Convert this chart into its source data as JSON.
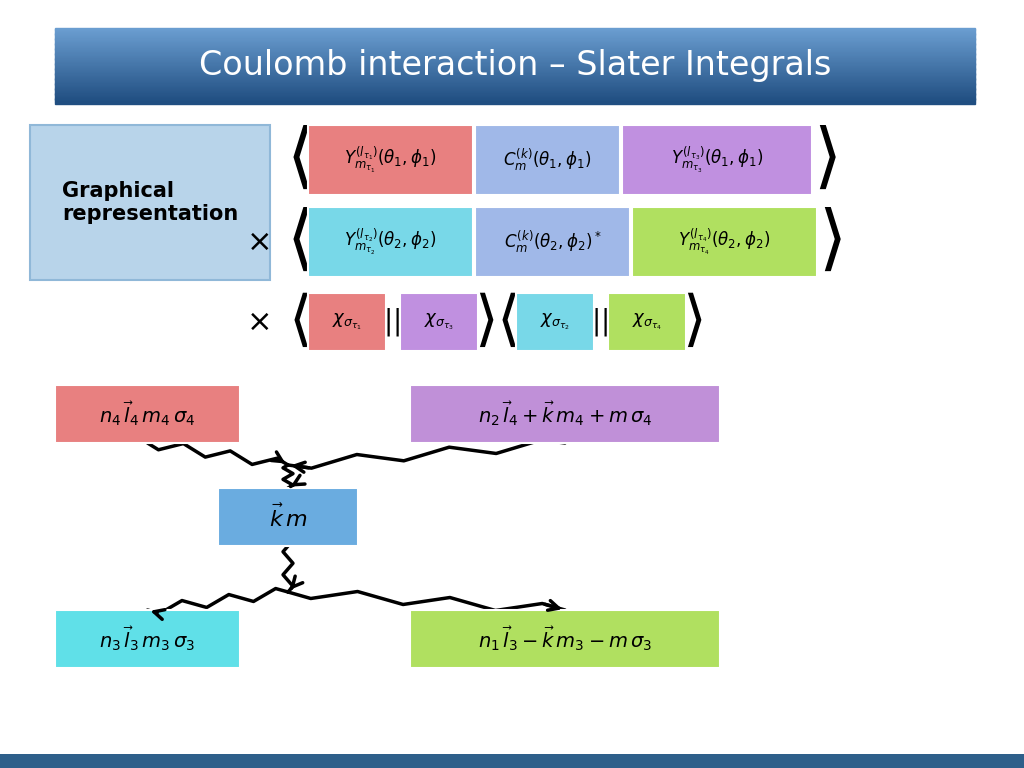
{
  "title": "Coulomb interaction – Slater Integrals",
  "background_color": "#ffffff",
  "graphical_label": "Graphical\nrepresentation",
  "bottom_bar_color": "#2e5f8a"
}
